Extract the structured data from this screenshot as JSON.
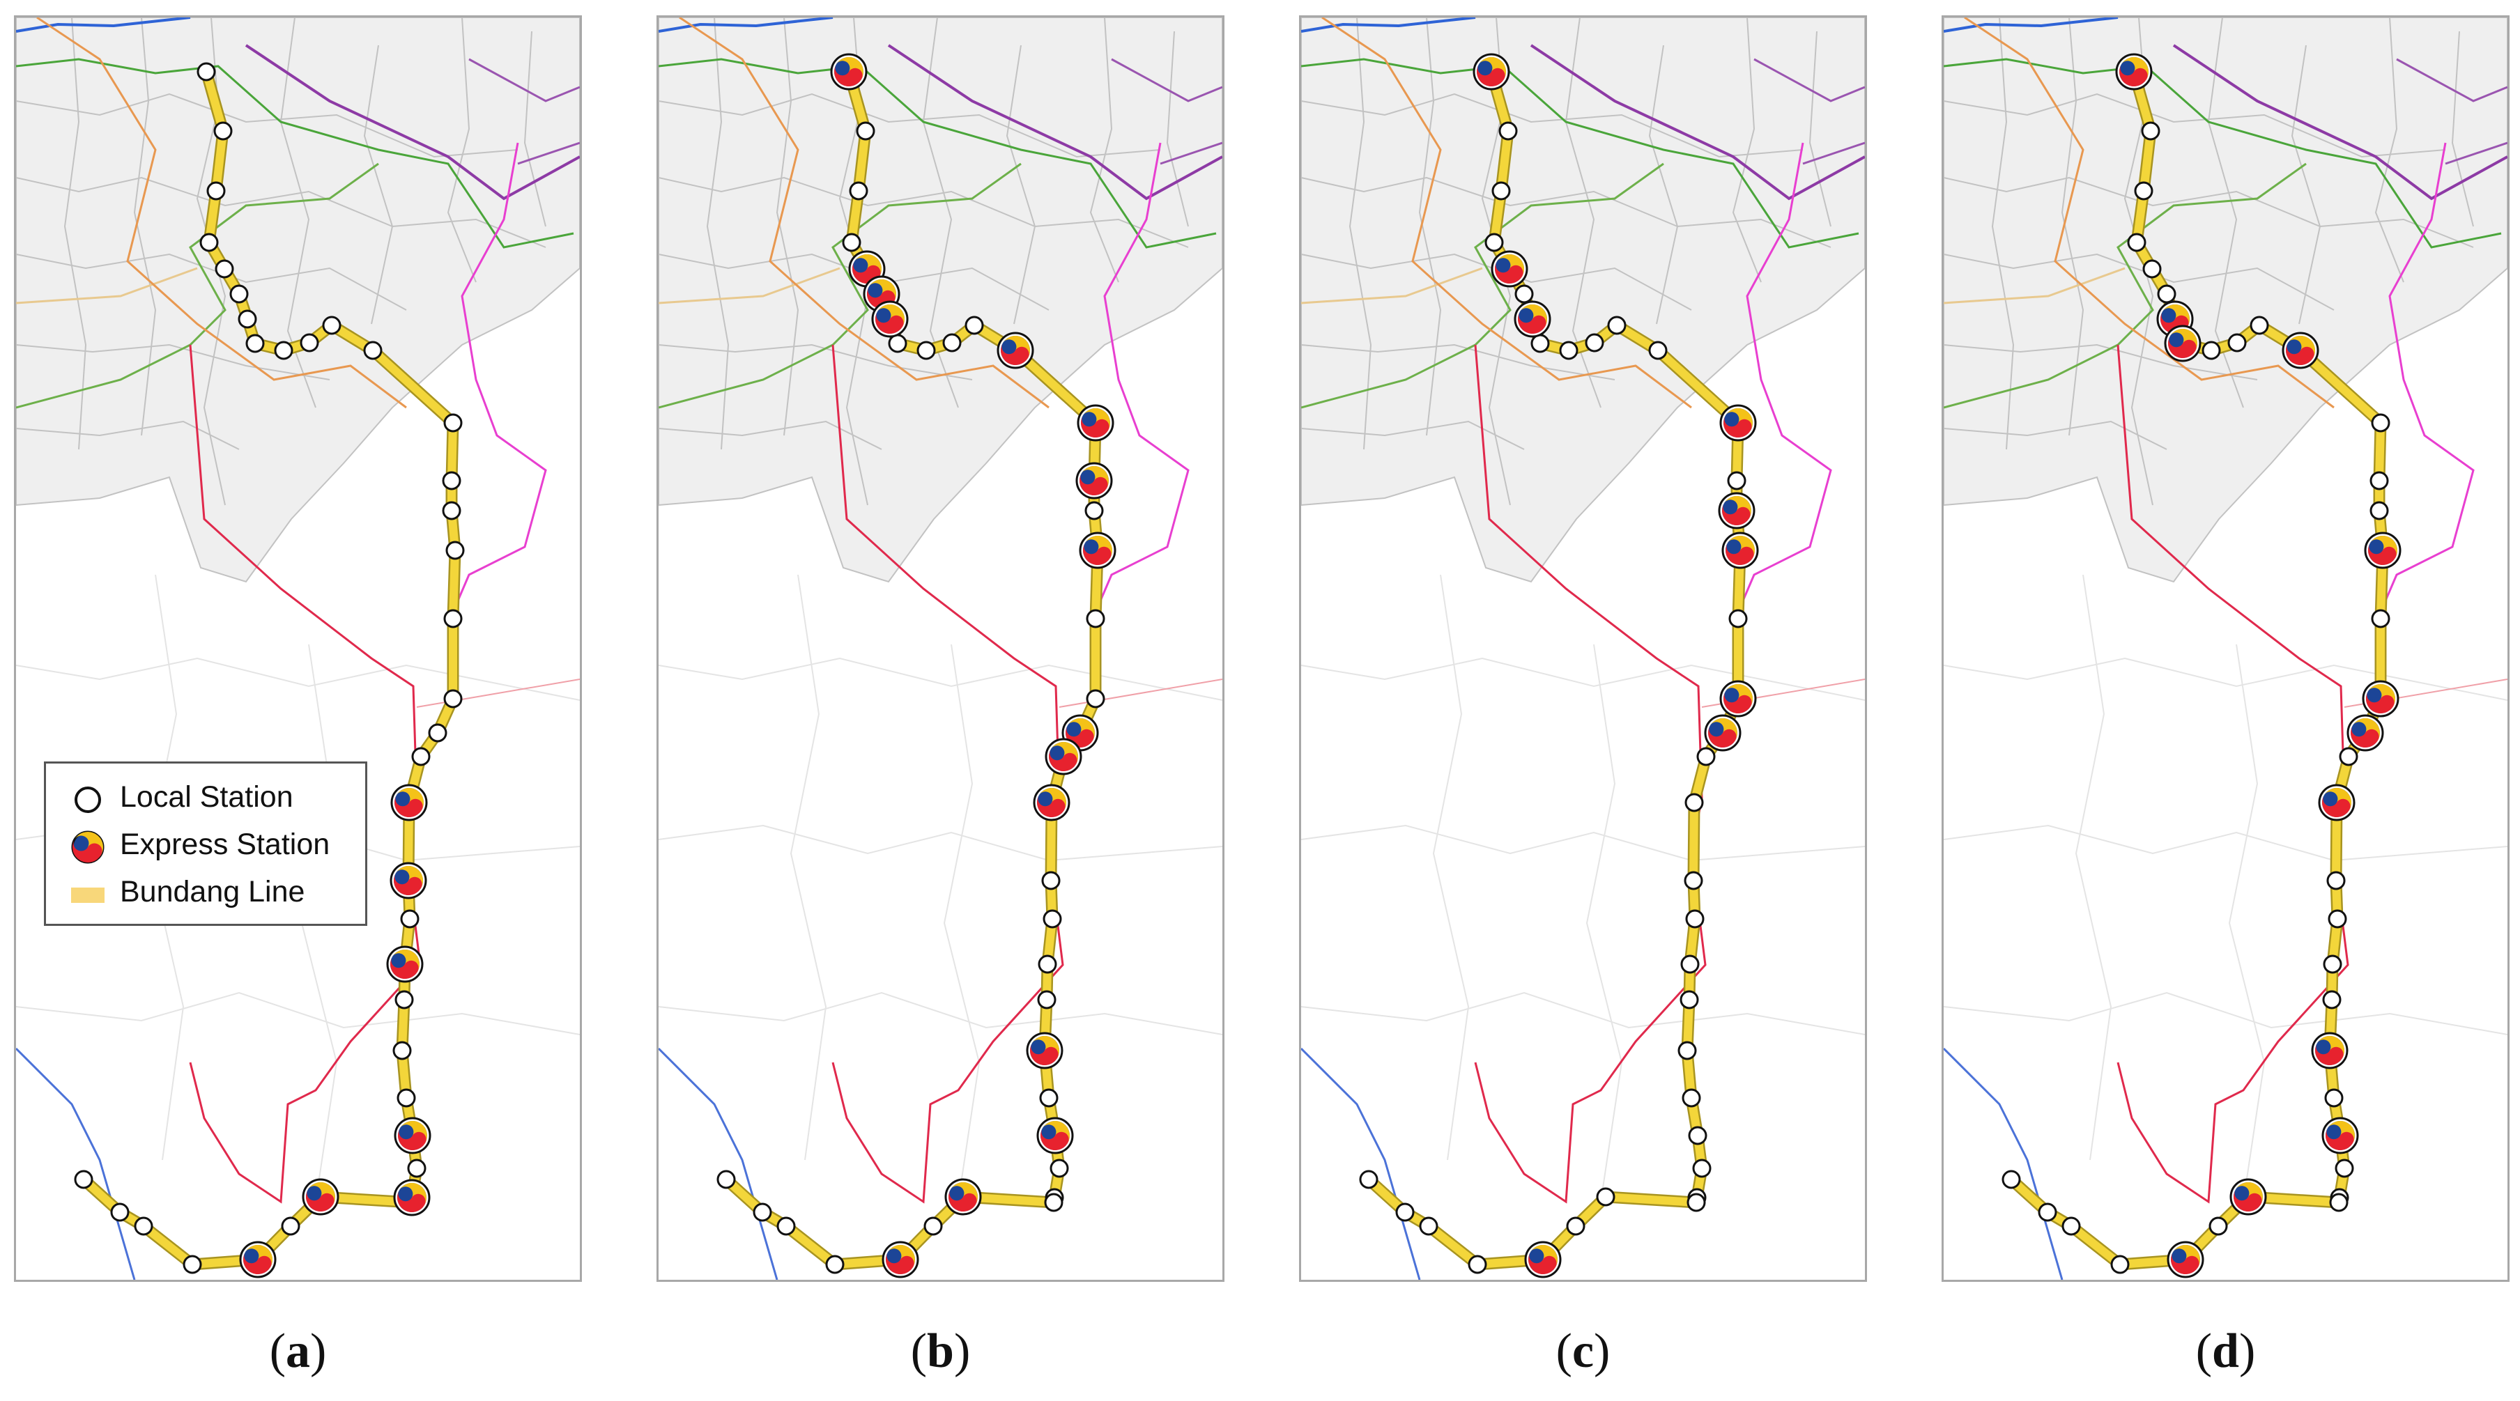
{
  "panels": [
    {
      "label": "a",
      "express": [
        20,
        21,
        23,
        27,
        29,
        31,
        33
      ]
    },
    {
      "label": "b",
      "express": [
        0,
        4,
        5,
        6,
        11,
        12,
        13,
        15,
        18,
        19,
        20,
        25,
        27,
        31,
        33
      ]
    },
    {
      "label": "c",
      "express": [
        0,
        4,
        6,
        12,
        14,
        15,
        17,
        18,
        33
      ]
    },
    {
      "label": "d",
      "express": [
        0,
        6,
        7,
        11,
        15,
        17,
        18,
        20,
        25,
        27,
        31,
        33
      ]
    }
  ],
  "legend": {
    "local": "Local Station",
    "express": "Express Station",
    "line": "Bundang Line"
  },
  "colors": {
    "bundang_line": "#f3d63a",
    "district_fill": "#efefef",
    "district_border": "#c2c2c2",
    "station_red": "#e7222e",
    "station_yellow": "#f4c218",
    "station_blue": "#1c4597"
  }
}
